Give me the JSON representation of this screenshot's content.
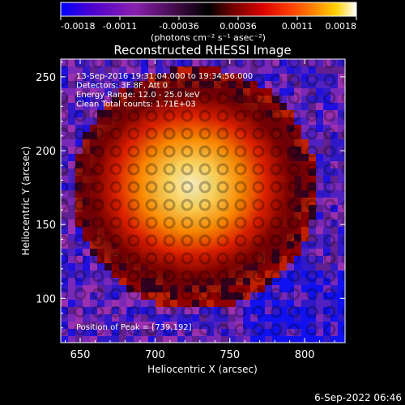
{
  "colorbar": {
    "ticks": [
      "-0.0018",
      "-0.0011",
      "-0.00036",
      "0.00036",
      "0.0011",
      "0.0018"
    ],
    "unit_label": "(photons cm⁻² s⁻¹ asec⁻²)",
    "colors": [
      "#0000ff",
      "#4a00d0",
      "#8a20b0",
      "#000000",
      "#700000",
      "#d80000",
      "#ff4000",
      "#ff8800",
      "#ffd000",
      "#ffff80",
      "#ffffff"
    ]
  },
  "chart_data": {
    "type": "heatmap",
    "title": "Reconstructed RHESSI Image",
    "xlabel": "Heliocentric X (arcsec)",
    "ylabel": "Heliocentric Y (arcsec)",
    "xlim": [
      637,
      827
    ],
    "ylim": [
      70,
      262
    ],
    "xticks": [
      "650",
      "700",
      "750",
      "800"
    ],
    "yticks": [
      "100",
      "150",
      "200",
      "250"
    ],
    "color_range": [
      -0.0018,
      0.0018
    ],
    "peak_position": [
      739,
      192
    ],
    "annotations": [
      "13-Sep-2016 19:31:04.000 to 19:34:56.000",
      "Detectors: 3F 8F, Att 0",
      "Energy Range: 12.0 - 25.0 keV",
      "Clean     Total counts: 1.71E+03"
    ],
    "peak_label": "Position of Peak = [739,192]"
  },
  "footer": {
    "timestamp": "6-Sep-2022 06:46"
  }
}
